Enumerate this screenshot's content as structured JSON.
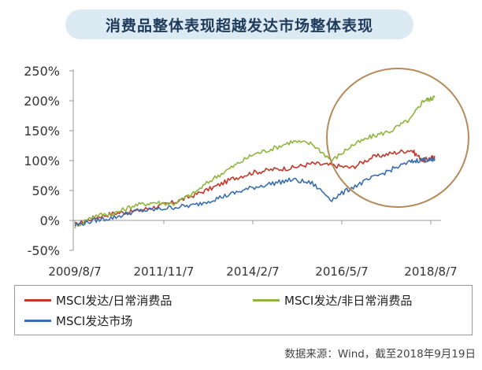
{
  "title": "消费品整体表现超越发达市场整体表现",
  "source": "数据来源：Wind，截至2018年9月19日",
  "chart_data": {
    "type": "line",
    "title": "消费品整体表现超越发达市场整体表现",
    "xlabel": "",
    "ylabel": "",
    "ylim": [
      -50,
      250
    ],
    "yticks": [
      "-50%",
      "0%",
      "50%",
      "100%",
      "150%",
      "200%",
      "250%"
    ],
    "xticks": [
      "2009/8/7",
      "2011/11/7",
      "2014/2/7",
      "2016/5/7",
      "2018/8/7"
    ],
    "xticks_t": [
      0,
      2.25,
      4.5,
      6.75,
      9
    ],
    "grid": false,
    "legend_position": "bottom",
    "highlight": "circle around the 2016–2018 period",
    "series": [
      {
        "name": "MSCI发达/日常消费品",
        "color": "#c0392b",
        "x": [
          0,
          0.5,
          1,
          1.5,
          2,
          2.5,
          3,
          3.5,
          4,
          4.5,
          5,
          5.5,
          6,
          6.5,
          7,
          7.5,
          8,
          8.5,
          8.8,
          9,
          9.1
        ],
        "y": [
          -8,
          5,
          12,
          15,
          22,
          30,
          42,
          55,
          70,
          80,
          85,
          88,
          95,
          92,
          88,
          105,
          112,
          118,
          100,
          104,
          106
        ]
      },
      {
        "name": "MSCI发达/非日常消费品",
        "color": "#8fb53d",
        "x": [
          0,
          0.5,
          1,
          1.5,
          2,
          2.5,
          3,
          3.5,
          4,
          4.5,
          5,
          5.5,
          6,
          6.5,
          7,
          7.5,
          8,
          8.5,
          8.8,
          9,
          9.1
        ],
        "y": [
          -10,
          8,
          12,
          25,
          30,
          28,
          45,
          70,
          90,
          110,
          120,
          132,
          128,
          100,
          125,
          140,
          150,
          170,
          200,
          203,
          207
        ]
      },
      {
        "name": "MSCI发达市场",
        "color": "#3a6eaf",
        "x": [
          0,
          0.5,
          1,
          1.5,
          2,
          2.5,
          3,
          3.5,
          4,
          4.5,
          5,
          5.5,
          6,
          6.5,
          7,
          7.5,
          8,
          8.5,
          8.8,
          9,
          9.1
        ],
        "y": [
          -8,
          0,
          5,
          15,
          18,
          22,
          25,
          35,
          45,
          55,
          62,
          68,
          62,
          35,
          55,
          70,
          85,
          98,
          102,
          100,
          103
        ]
      }
    ]
  }
}
